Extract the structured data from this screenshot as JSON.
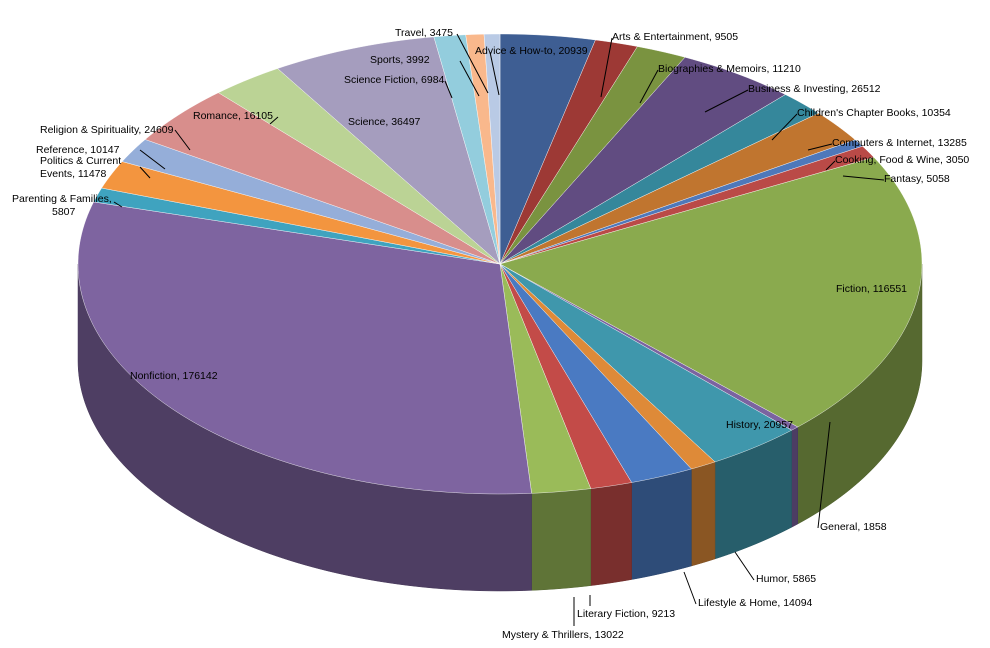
{
  "chart_data": {
    "type": "pie",
    "title": "",
    "style": "3d-exploded-none",
    "slices": [
      {
        "name": "Advice & How-to",
        "value": 20939,
        "label": "Advice & How-to,  20939",
        "color": "#3E5E93"
      },
      {
        "name": "Arts & Entertainment",
        "value": 9505,
        "label": "Arts & Entertainment,  9505",
        "color": "#9D3935"
      },
      {
        "name": "Biographies & Memoirs",
        "value": 11210,
        "label": "Biographies & Memoirs,  11210",
        "color": "#7A9340"
      },
      {
        "name": "Business & Investing",
        "value": 26512,
        "label": "Business & Investing,  26512",
        "color": "#614C81"
      },
      {
        "name": "Children's Chapter Books",
        "value": 10354,
        "label": "Children's Chapter Books,  10354",
        "color": "#35879B"
      },
      {
        "name": "Computers & Internet",
        "value": 13285,
        "label": "Computers & Internet,  13285",
        "color": "#C0752F"
      },
      {
        "name": "Cooking, Food & Wine",
        "value": 3050,
        "label": "Cooking, Food & Wine,  3050",
        "color": "#4E78BA"
      },
      {
        "name": "Fantasy",
        "value": 5058,
        "label": "Fantasy,  5058",
        "color": "#BA4A47"
      },
      {
        "name": "Fiction",
        "value": 116551,
        "label": "Fiction,  116551",
        "color": "#8AAA4E"
      },
      {
        "name": "General",
        "value": 1858,
        "label": "General,  1858",
        "color": "#7B63A0"
      },
      {
        "name": "History",
        "value": 20957,
        "label": "History,  20957",
        "color": "#3F97AC"
      },
      {
        "name": "Humor",
        "value": 5865,
        "label": "Humor,  5865",
        "color": "#DE8A38"
      },
      {
        "name": "Lifestyle & Home",
        "value": 14094,
        "label": "Lifestyle & Home,  14094",
        "color": "#4A7AC2"
      },
      {
        "name": "Literary Fiction",
        "value": 9213,
        "label": "Literary Fiction,  9213",
        "color": "#C34B48"
      },
      {
        "name": "Mystery & Thrillers",
        "value": 13022,
        "label": "Mystery & Thrillers,  13022",
        "color": "#9ABB59"
      },
      {
        "name": "Nonfiction",
        "value": 176142,
        "label": "Nonfiction,  176142",
        "color": "#7E64A0"
      },
      {
        "name": "Parenting & Families",
        "value": 5807,
        "label": "Parenting & Families,  5807",
        "color": "#3FA3BF"
      },
      {
        "name": "Politics & Current Events",
        "value": 11478,
        "label": "Politics & Current Events,  11478",
        "color": "#F3953F"
      },
      {
        "name": "Reference",
        "value": 10147,
        "label": "Reference,  10147",
        "color": "#95AED9"
      },
      {
        "name": "Religion & Spirituality",
        "value": 24609,
        "label": "Religion & Spirituality,  24609",
        "color": "#D88E8C"
      },
      {
        "name": "Romance",
        "value": 16105,
        "label": "Romance,  16105",
        "color": "#BBD395"
      },
      {
        "name": "Science",
        "value": 36497,
        "label": "Science,  36497",
        "color": "#A59DBE"
      },
      {
        "name": "Science Fiction",
        "value": 6984,
        "label": "Science Fiction,  6984",
        "color": "#93CDDD"
      },
      {
        "name": "Sports",
        "value": 3992,
        "label": "Sports,  3992",
        "color": "#F9B88C"
      },
      {
        "name": "Travel",
        "value": 3475,
        "label": "Travel,  3475",
        "color": "#B9CAE5"
      }
    ]
  }
}
